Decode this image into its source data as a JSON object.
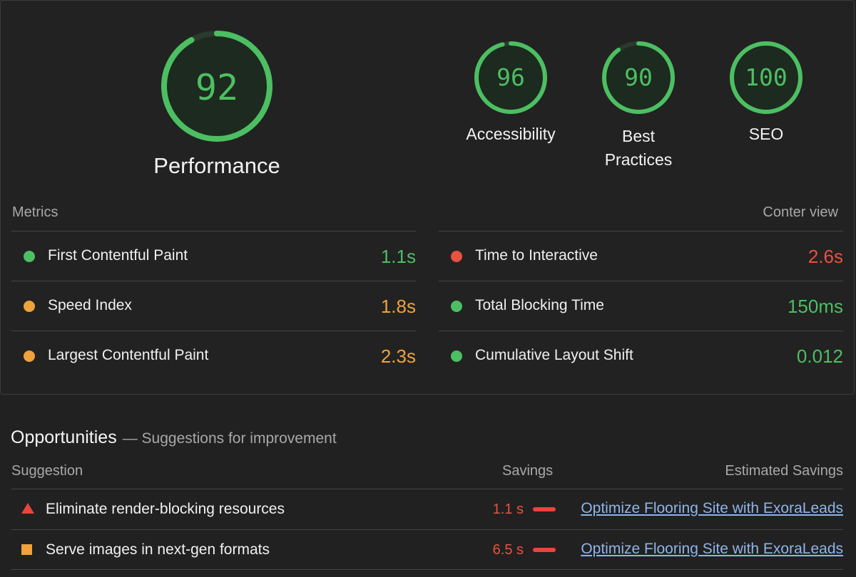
{
  "colors": {
    "pass": "#4cbf62",
    "average": "#f0a23b",
    "fail": "#e8523f",
    "link": "#8fb4ea"
  },
  "scores": {
    "performance": {
      "value": "92",
      "label": "Performance",
      "fraction": 0.92
    },
    "accessibility": {
      "value": "96",
      "label": "Accessibility",
      "fraction": 0.96
    },
    "best_practices": {
      "value": "90",
      "label_line1": "Best",
      "label_line2": "Practices",
      "fraction": 0.9
    },
    "seo": {
      "value": "100",
      "label": "SEO",
      "fraction": 1.0
    }
  },
  "metrics": {
    "header_left": "Metrics",
    "header_right": "Conter view",
    "left": [
      {
        "name": "First Contentful Paint",
        "value": "1.1s",
        "status": "pass"
      },
      {
        "name": "Speed Index",
        "value": "1.8s",
        "status": "average"
      },
      {
        "name": "Largest Contentful Paint",
        "value": "2.3s",
        "status": "average"
      }
    ],
    "right": [
      {
        "name": "Time to Interactive",
        "value": "2.6s",
        "status": "fail"
      },
      {
        "name": "Total Blocking Time",
        "value": "150ms",
        "status": "pass"
      },
      {
        "name": "Cumulative Layout Shift",
        "value": "0.012",
        "status": "pass"
      }
    ]
  },
  "opportunities": {
    "title": "Opportunities",
    "subtitle": "— Suggestions for improvement",
    "columns": {
      "suggestion": "Suggestion",
      "savings": "Savings",
      "estimated": "Estimated Savings"
    },
    "rows": [
      {
        "icon": "triangle-warning-icon",
        "text": "Eliminate render-blocking resources",
        "savings": "1.1 s",
        "link": "Optimize Flooring Site with ExoraLeads"
      },
      {
        "icon": "square-warning-icon",
        "text": "Serve images in next-gen formats",
        "savings": "6.5 s",
        "link": "Optimize Flooring Site with ExoraLeads"
      }
    ]
  }
}
